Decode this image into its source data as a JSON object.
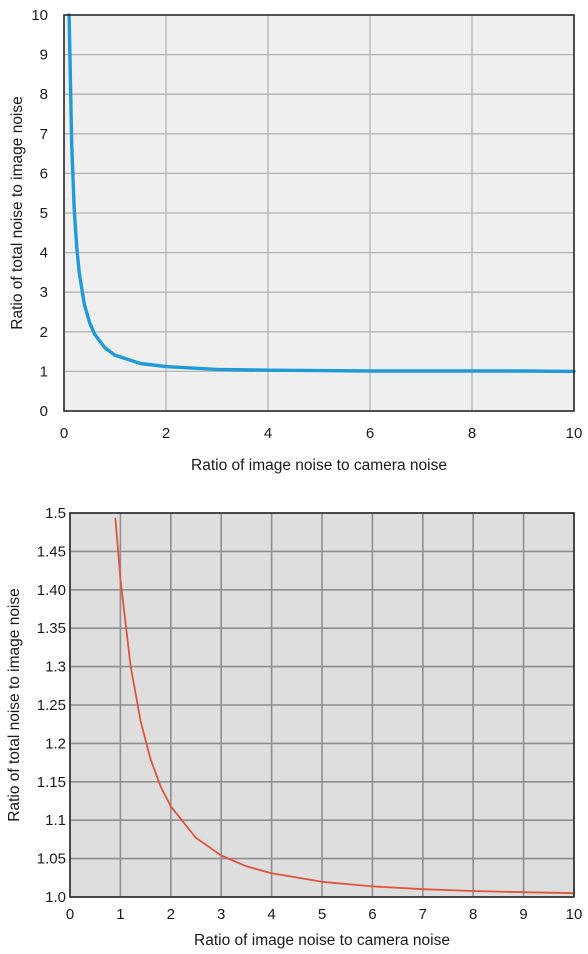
{
  "charts": [
    {
      "xlabel": "Ratio of image noise to camera noise",
      "ylabel": "Ratio of total noise to image noise"
    },
    {
      "xlabel": "Ratio of image noise to camera noise",
      "ylabel": "Ratio of total noise to image noise"
    }
  ],
  "chart_data": [
    {
      "type": "line",
      "xlabel": "Ratio of image noise to camera noise",
      "ylabel": "Ratio of total noise to image noise",
      "xlim": [
        0,
        10
      ],
      "ylim": [
        0,
        10
      ],
      "x_ticks": [
        "0",
        "2",
        "4",
        "6",
        "8",
        "10"
      ],
      "y_ticks": [
        "0",
        "1",
        "2",
        "3",
        "4",
        "5",
        "6",
        "7",
        "8",
        "9",
        "10"
      ],
      "grid": true,
      "plot_background": "#efefef",
      "series": [
        {
          "color": "#1f9bd7",
          "x": [
            0.1,
            0.15,
            0.2,
            0.25,
            0.3,
            0.4,
            0.5,
            0.6,
            0.8,
            1.0,
            1.5,
            2.0,
            3.0,
            4.0,
            5.0,
            6.0,
            7.0,
            8.0,
            9.0,
            10.0
          ],
          "y": [
            10.05,
            6.74,
            5.1,
            4.12,
            3.48,
            2.69,
            2.24,
            1.94,
            1.6,
            1.41,
            1.2,
            1.12,
            1.05,
            1.03,
            1.02,
            1.01,
            1.01,
            1.01,
            1.01,
            1.0
          ]
        }
      ]
    },
    {
      "type": "line",
      "xlabel": "Ratio of image noise to camera noise",
      "ylabel": "Ratio of total noise to image noise",
      "xlim": [
        0,
        10
      ],
      "ylim": [
        1.0,
        1.5
      ],
      "x_ticks": [
        "0",
        "1",
        "2",
        "3",
        "4",
        "5",
        "6",
        "7",
        "8",
        "9",
        "10"
      ],
      "y_ticks": [
        "1.0",
        "1.05",
        "1.1",
        "1.15",
        "1.2",
        "1.25",
        "1.3",
        "1.35",
        "1.40",
        "1.45",
        "1.5"
      ],
      "grid": true,
      "plot_background": "#dedede",
      "series": [
        {
          "color": "#e0533d",
          "x": [
            0.9,
            1.0,
            1.2,
            1.4,
            1.6,
            1.8,
            2.0,
            2.5,
            3.0,
            3.5,
            4.0,
            5.0,
            6.0,
            7.0,
            8.0,
            9.0,
            10.0
          ],
          "y": [
            1.4928,
            1.4142,
            1.3017,
            1.2289,
            1.1792,
            1.1437,
            1.118,
            1.077,
            1.0541,
            1.04,
            1.0308,
            1.0198,
            1.0138,
            1.0102,
            1.0078,
            1.0062,
            1.005
          ]
        }
      ]
    }
  ]
}
